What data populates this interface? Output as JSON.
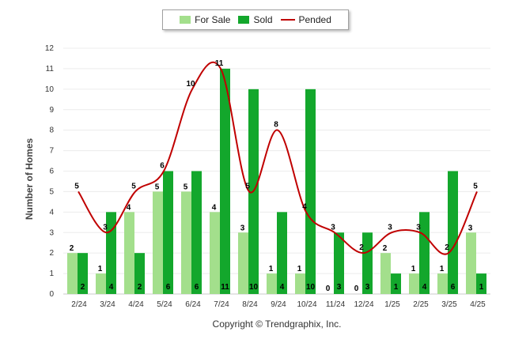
{
  "chart_data": {
    "type": "bar",
    "categories": [
      "2/24",
      "3/24",
      "4/24",
      "5/24",
      "6/24",
      "7/24",
      "8/24",
      "9/24",
      "10/24",
      "11/24",
      "12/24",
      "1/25",
      "2/25",
      "3/25",
      "4/25"
    ],
    "series": [
      {
        "name": "For Sale",
        "kind": "bar",
        "color": "#a3df8c",
        "values": [
          2,
          1,
          4,
          5,
          5,
          4,
          3,
          1,
          1,
          0,
          0,
          2,
          1,
          1,
          3
        ]
      },
      {
        "name": "Sold",
        "kind": "bar",
        "color": "#13a72c",
        "values": [
          2,
          4,
          2,
          6,
          6,
          11,
          10,
          4,
          10,
          3,
          3,
          1,
          4,
          6,
          1
        ]
      },
      {
        "name": "Pended",
        "kind": "line",
        "color": "#c00000",
        "values": [
          5,
          3,
          5,
          6,
          10,
          11,
          5,
          8,
          4,
          3,
          2,
          3,
          3,
          2,
          5
        ]
      }
    ],
    "ylabel": "Number of Homes",
    "ylim": [
      0,
      12
    ],
    "yticks": [
      0,
      1,
      2,
      3,
      4,
      5,
      6,
      7,
      8,
      9,
      10,
      11,
      12
    ],
    "grid": true,
    "legend_position": "top-center"
  },
  "copyright": "Copyright © Trendgraphix, Inc."
}
